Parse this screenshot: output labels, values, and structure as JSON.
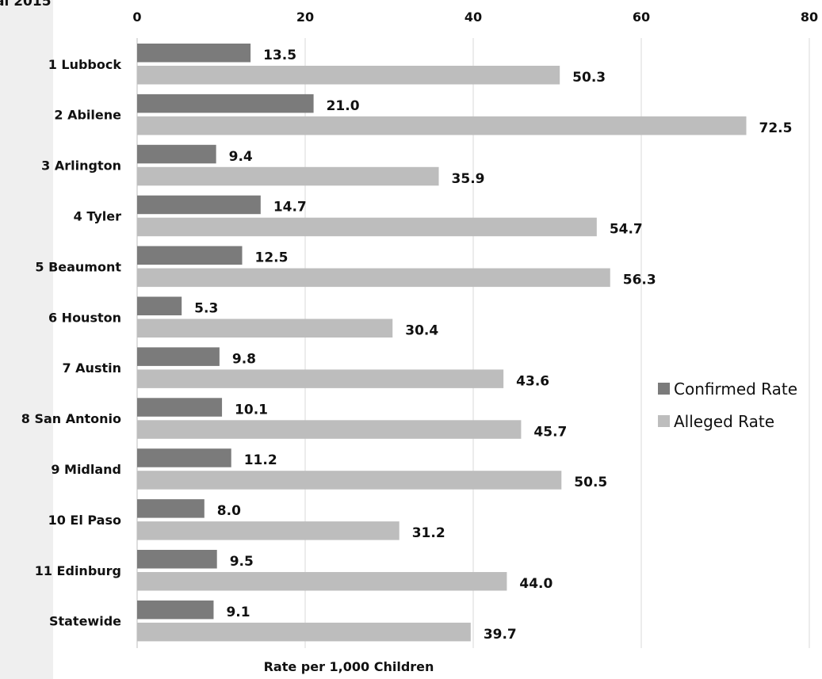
{
  "header": {
    "clipped_title": "al 2015"
  },
  "chart_data": {
    "type": "bar",
    "orientation": "horizontal",
    "categories": [
      "1 Lubbock",
      "2 Abilene",
      "3 Arlington",
      "4 Tyler",
      "5 Beaumont",
      "6 Houston",
      "7 Austin",
      "8 San Antonio",
      "9 Midland",
      "10 El Paso",
      "11 Edinburg",
      "Statewide"
    ],
    "series": [
      {
        "name": "Confirmed Rate",
        "color": "#7b7b7b",
        "values": [
          13.5,
          21.0,
          9.4,
          14.7,
          12.5,
          5.3,
          9.8,
          10.1,
          11.2,
          8.0,
          9.5,
          9.1
        ],
        "labels": [
          "13.5",
          "21.0",
          "9.4",
          "14.7",
          "12.5",
          "5.3",
          "9.8",
          "10.1",
          "11.2",
          "8.0",
          "9.5",
          "9.1"
        ]
      },
      {
        "name": "Alleged Rate",
        "color": "#bdbdbd",
        "values": [
          50.3,
          72.5,
          35.9,
          54.7,
          56.3,
          30.4,
          43.6,
          45.7,
          50.5,
          31.2,
          44.0,
          39.7
        ],
        "labels": [
          "50.3",
          "72.5",
          "35.9",
          "54.7",
          "56.3",
          "30.4",
          "43.6",
          "45.7",
          "50.5",
          "31.2",
          "44.0",
          "39.7"
        ]
      }
    ],
    "xlim": [
      0,
      80
    ],
    "xticks": [
      0,
      20,
      40,
      60,
      80
    ],
    "xtick_labels": [
      "0",
      "20",
      "40",
      "60",
      "80"
    ],
    "xaxis_position": "top",
    "xlabel": "Rate per 1,000 Children",
    "grid": "vertical",
    "legend_position": "right"
  }
}
